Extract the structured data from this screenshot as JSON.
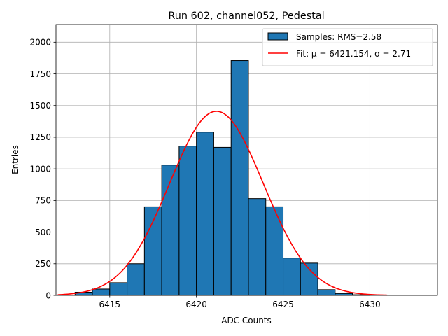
{
  "chart_data": {
    "type": "bar",
    "title": "Run 602, channel052, Pedestal",
    "xlabel": "ADC Counts",
    "ylabel": "Entries",
    "xlim": [
      6411.9,
      6433.9
    ],
    "ylim": [
      0,
      2140
    ],
    "xticks": [
      6415,
      6420,
      6425,
      6430
    ],
    "yticks": [
      0,
      250,
      500,
      750,
      1000,
      1250,
      1500,
      1750,
      2000
    ],
    "grid": true,
    "legend_position": "upper right",
    "histogram": {
      "name": "Samples: RMS=2.58",
      "color": "#1f77b4",
      "bin_edges": [
        6413,
        6414,
        6415,
        6416,
        6417,
        6418,
        6419,
        6420,
        6421,
        6422,
        6423,
        6424,
        6425,
        6426,
        6427,
        6428,
        6429,
        6430,
        6431,
        6432,
        6433
      ],
      "counts": [
        25,
        50,
        100,
        250,
        700,
        1030,
        1180,
        1290,
        1170,
        1855,
        765,
        700,
        295,
        255,
        45,
        15,
        5,
        0,
        0,
        0
      ]
    },
    "fit": {
      "name": "Fit: μ = 6421.154, σ = 2.71",
      "color": "#ff0000",
      "mu": 6421.154,
      "sigma": 2.71,
      "amplitude": 1455,
      "x_range": [
        6412,
        6431
      ]
    }
  }
}
